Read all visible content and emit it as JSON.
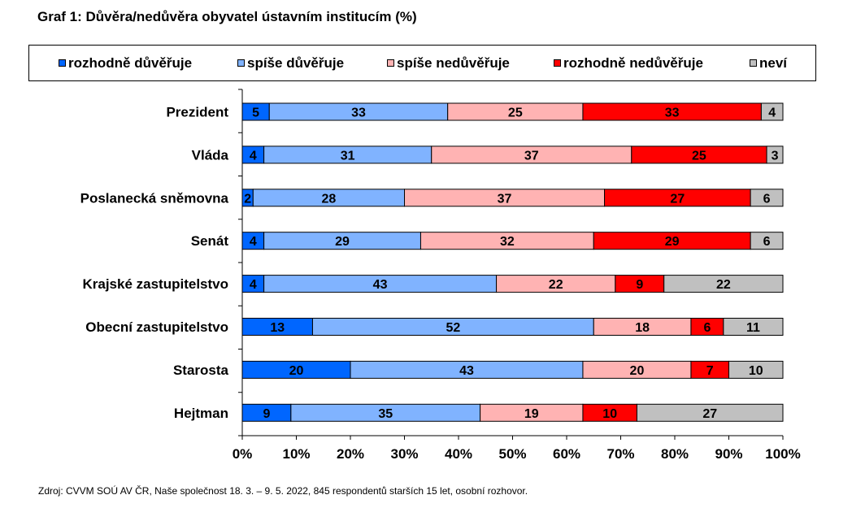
{
  "chart_data": {
    "type": "bar",
    "orientation": "horizontal",
    "stacked": true,
    "title": "Graf 1: Důvěra/nedůvěra obyvatel ústavním institucím (%)",
    "categories": [
      "Prezident",
      "Vláda",
      "Poslanecká sněmovna",
      "Senát",
      "Krajské zastupitelstvo",
      "Obecní zastupitelstvo",
      "Starosta",
      "Hejtman"
    ],
    "series": [
      {
        "name": "rozhodně důvěřuje",
        "color": "#0066ff",
        "values": [
          5,
          4,
          2,
          4,
          4,
          13,
          20,
          9
        ]
      },
      {
        "name": "spíše důvěřuje",
        "color": "#80b3ff",
        "values": [
          33,
          31,
          28,
          29,
          43,
          52,
          43,
          35
        ]
      },
      {
        "name": "spíše nedůvěřuje",
        "color": "#ffb3b3",
        "values": [
          25,
          37,
          37,
          32,
          22,
          18,
          20,
          19
        ]
      },
      {
        "name": "rozhodně nedůvěřuje",
        "color": "#ff0000",
        "values": [
          33,
          25,
          27,
          29,
          9,
          6,
          7,
          10
        ]
      },
      {
        "name": "neví",
        "color": "#c0c0c0",
        "values": [
          4,
          3,
          6,
          6,
          22,
          11,
          10,
          27
        ]
      }
    ],
    "xlim": [
      0,
      100
    ],
    "x_ticks": [
      "0%",
      "10%",
      "20%",
      "30%",
      "40%",
      "50%",
      "60%",
      "70%",
      "80%",
      "90%",
      "100%"
    ],
    "legend_position": "top",
    "grid": false
  },
  "source": "Zdroj: CVVM SOÚ AV ČR, Naše společnost 18.  3. – 9. 5. 2022, 845 respondentů starších 15 let, osobní rozhovor."
}
